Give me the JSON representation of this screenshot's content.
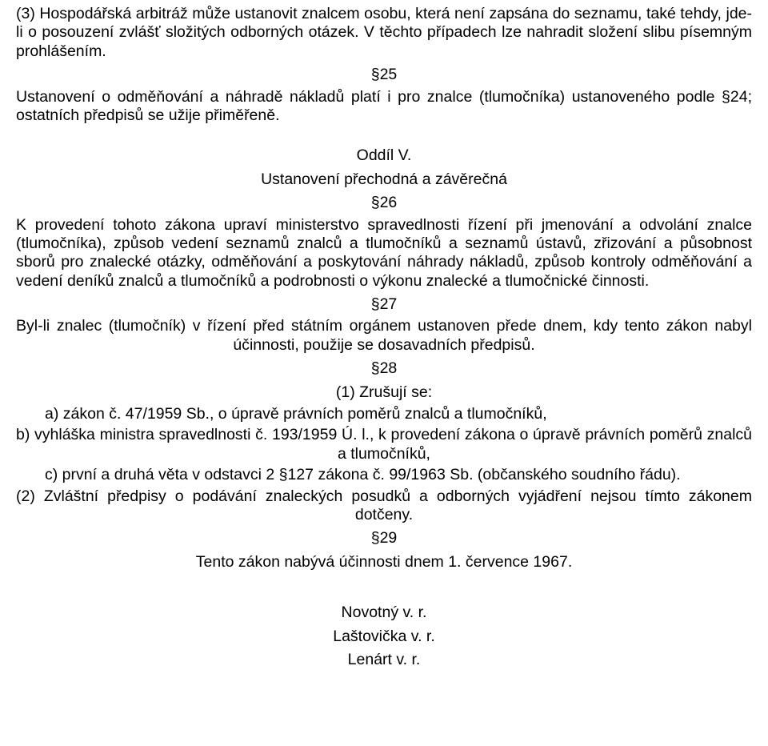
{
  "colors": {
    "text": "#000000",
    "background": "#ffffff"
  },
  "typography": {
    "fontFamily": "Arial, Helvetica, sans-serif",
    "fontSizePx": 19.5,
    "lineHeight": 1.2
  },
  "p3": "(3) Hospodářská arbitráž může ustanovit znalcem osobu, která není zapsána do seznamu, také tehdy, jde-li o posouzení zvlášť složitých odborných otázek. V těchto případech lze nahradit složení slibu písemným prohlášením.",
  "s25": {
    "num": "§25",
    "text": "Ustanovení o odměňování a náhradě nákladů platí i pro znalce (tlumočníka) ustanoveného podle §24; ostatních předpisů se užije přiměřeně."
  },
  "oddilV": {
    "title": "Oddíl V.",
    "subtitle": "Ustanovení přechodná a závěrečná"
  },
  "s26": {
    "num": "§26",
    "text": "K provedení tohoto zákona upraví ministerstvo spravedlnosti řízení při jmenování a odvolání znalce (tlumočníka), způsob vedení seznamů znalců a tlumočníků a seznamů ústavů, zřizování a působnost sborů pro znalecké otázky, odměňování a poskytování náhrady nákladů, způsob kontroly odměňování a vedení deníků znalců a tlumočníků a podrobnosti o výkonu znalecké a tlumočnické činnosti."
  },
  "s27": {
    "num": "§27",
    "text": "Byl-li znalec (tlumočník) v řízení před státním orgánem ustanoven přede dnem, kdy tento zákon nabyl účinnosti, použije se dosavadních předpisů."
  },
  "s28": {
    "num": "§28",
    "p1": "(1) Zrušují se:",
    "a": "a) zákon č. 47/1959 Sb., o úpravě právních poměrů znalců a tlumočníků,",
    "b": "b) vyhláška ministra spravedlnosti č. 193/1959 Ú. l., k provedení zákona o úpravě právních poměrů znalců a tlumočníků,",
    "c": "c) první a druhá věta v odstavci 2 §127 zákona č. 99/1963 Sb. (občanského soudního řádu).",
    "p2": "(2) Zvláštní předpisy o podávání znaleckých posudků a odborných vyjádření nejsou tímto zákonem dotčeny."
  },
  "s29": {
    "num": "§29",
    "text": "Tento zákon nabývá účinnosti dnem 1. července 1967."
  },
  "signatures": {
    "sig1": "Novotný v. r.",
    "sig2": "Laštovička v. r.",
    "sig3": "Lenárt v. r."
  }
}
